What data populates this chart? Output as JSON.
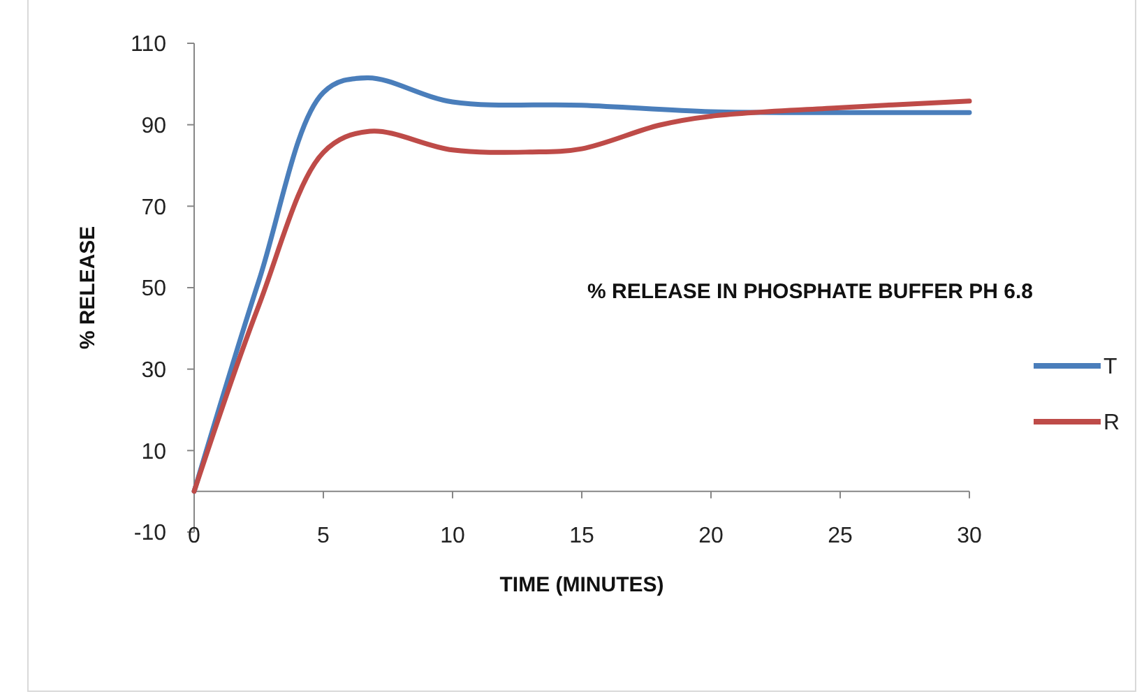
{
  "chart_data": {
    "type": "line",
    "title": "% RELEASE IN PHOSPHATE BUFFER PH 6.8",
    "xlabel": "TIME (MINUTES)",
    "ylabel": "% RELEASE",
    "series": [
      {
        "name": "T",
        "color": "#4a7ebb",
        "x": [
          0,
          2.5,
          5,
          6.7,
          10,
          15,
          20,
          25,
          30
        ],
        "values": [
          0,
          51.6,
          97.9,
          101.5,
          95.6,
          94.8,
          93.2,
          93,
          93
        ]
      },
      {
        "name": "R",
        "color": "#be4b48",
        "x": [
          0,
          2.5,
          5,
          6.8,
          10,
          13,
          15,
          18,
          20,
          25,
          30
        ],
        "values": [
          0,
          45.6,
          83.2,
          88.4,
          83.8,
          83.3,
          84.1,
          89.9,
          92.1,
          94.2,
          95.8
        ]
      }
    ],
    "xlim": [
      0,
      30
    ],
    "xticks": [
      0,
      5,
      10,
      15,
      20,
      25,
      30
    ],
    "ylim": [
      -10,
      110
    ],
    "yticks": [
      -10,
      10,
      30,
      50,
      70,
      90,
      110
    ],
    "grid": false,
    "legend": "right",
    "marker": "none",
    "line_style": "solid"
  }
}
